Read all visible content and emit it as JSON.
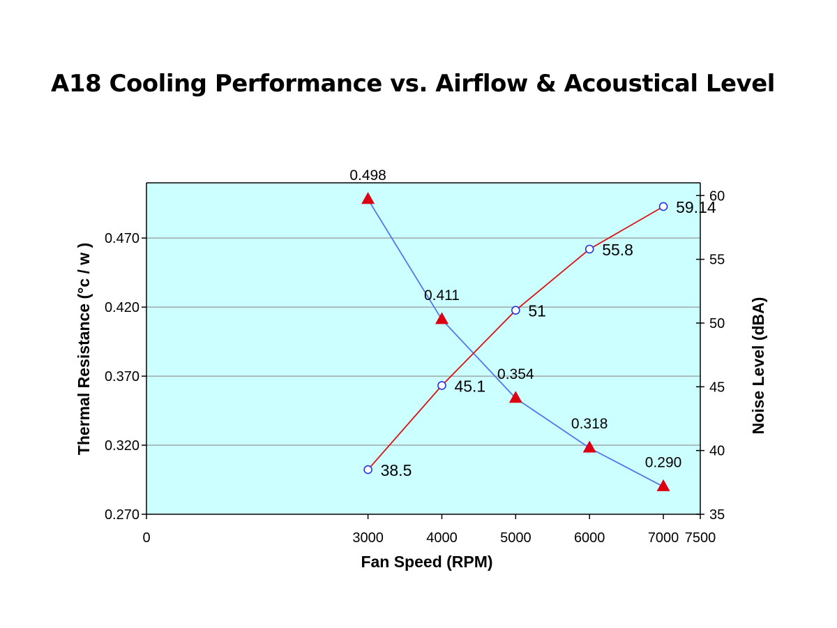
{
  "chart_data": {
    "type": "line",
    "title": "A18 Cooling Performance vs. Airflow & Acoustical Level",
    "xlabel": "Fan Speed (RPM)",
    "ylabel_left": "Thermal Resistance (°c / w )",
    "ylabel_right": "Noise Level  (dBA)",
    "xlim": [
      0,
      7500
    ],
    "x_ticks": [
      "0",
      "3000",
      "4000",
      "5000",
      "6000",
      "7000",
      "7500"
    ],
    "x_tick_values": [
      0,
      3000,
      4000,
      5000,
      6000,
      7000,
      7500
    ],
    "ylim_left": [
      0.27,
      0.51
    ],
    "y_left_ticks": [
      "0.270",
      "0.320",
      "0.370",
      "0.420",
      "0.470"
    ],
    "y_left_tick_values": [
      0.27,
      0.32,
      0.37,
      0.42,
      0.47
    ],
    "ylim_right": [
      35,
      61
    ],
    "y_right_ticks": [
      "35",
      "40",
      "45",
      "50",
      "55",
      "60"
    ],
    "y_right_tick_values": [
      35,
      40,
      45,
      50,
      55,
      60
    ],
    "grid": true,
    "background_color": "#ccffff",
    "series": [
      {
        "axis": "left",
        "marker": "triangle",
        "line_color": "#5577ee",
        "marker_color": "#dd0011",
        "x": [
          3000,
          4000,
          5000,
          6000,
          7000
        ],
        "values": [
          0.498,
          0.411,
          0.354,
          0.318,
          0.29
        ],
        "labels": [
          "0.498",
          "0.411",
          "0.354",
          "0.318",
          "0.290"
        ]
      },
      {
        "axis": "right",
        "marker": "circle",
        "line_color": "#dd1111",
        "marker_color": "#2233ee",
        "x": [
          3000,
          4000,
          5000,
          6000,
          7000
        ],
        "values": [
          38.5,
          45.1,
          51,
          55.8,
          59.14
        ],
        "labels": [
          "38.5",
          "45.1",
          "51",
          "55.8",
          "59.14"
        ]
      }
    ]
  }
}
